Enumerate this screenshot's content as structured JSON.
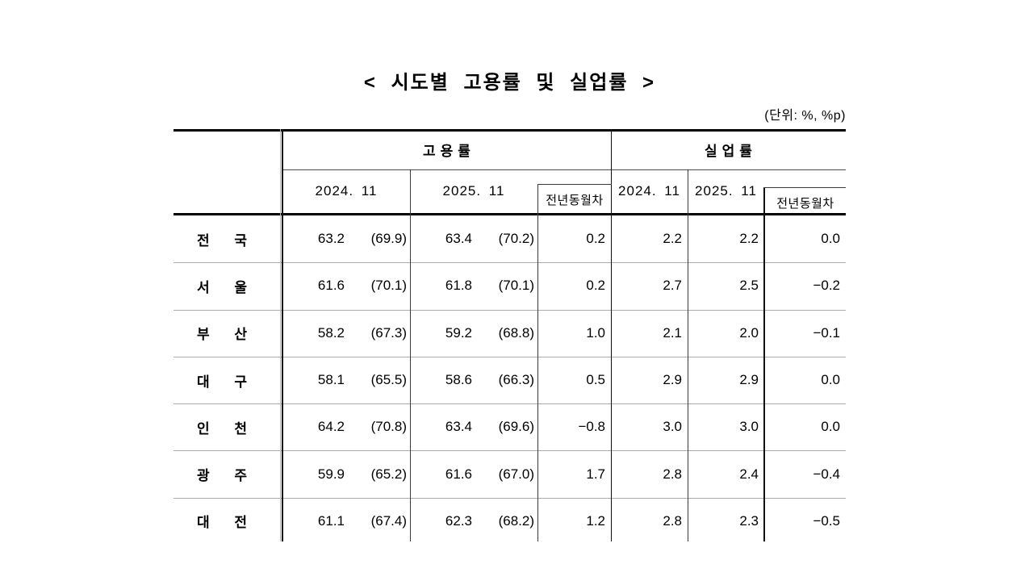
{
  "page": {
    "title": "< 시도별 고용률 및 실업률 >",
    "unit_note": "(단위: %, %p)"
  },
  "colors": {
    "text": "#111111",
    "border_dark": "#111111",
    "border_light": "#ababab"
  },
  "table": {
    "col_groups": [
      {
        "label": "고용률"
      },
      {
        "label": "실업률"
      }
    ],
    "sub_headers": {
      "emp_2024": "2024. 11",
      "emp_2025": "2025. 11",
      "emp_diff": "전년동월차",
      "unemp_2024": "2024. 11",
      "unemp_2025": "2025. 11",
      "unemp_diff": "전년동월차"
    },
    "rows": [
      {
        "region": "전 국",
        "e24v": "63.2",
        "e24p": "(69.9)",
        "e25v": "63.4",
        "e25p": "(70.2)",
        "ediff": "0.2",
        "u24": "2.2",
        "u25": "2.2",
        "udiff": "0.0"
      },
      {
        "region": "서 울",
        "e24v": "61.6",
        "e24p": "(70.1)",
        "e25v": "61.8",
        "e25p": "(70.1)",
        "ediff": "0.2",
        "u24": "2.7",
        "u25": "2.5",
        "udiff": "−0.2"
      },
      {
        "region": "부 산",
        "e24v": "58.2",
        "e24p": "(67.3)",
        "e25v": "59.2",
        "e25p": "(68.8)",
        "ediff": "1.0",
        "u24": "2.1",
        "u25": "2.0",
        "udiff": "−0.1"
      },
      {
        "region": "대 구",
        "e24v": "58.1",
        "e24p": "(65.5)",
        "e25v": "58.6",
        "e25p": "(66.3)",
        "ediff": "0.5",
        "u24": "2.9",
        "u25": "2.9",
        "udiff": "0.0"
      },
      {
        "region": "인 천",
        "e24v": "64.2",
        "e24p": "(70.8)",
        "e25v": "63.4",
        "e25p": "(69.6)",
        "ediff": "−0.8",
        "u24": "3.0",
        "u25": "3.0",
        "udiff": "0.0"
      },
      {
        "region": "광 주",
        "e24v": "59.9",
        "e24p": "(65.2)",
        "e25v": "61.6",
        "e25p": "(67.0)",
        "ediff": "1.7",
        "u24": "2.8",
        "u25": "2.4",
        "udiff": "−0.4"
      },
      {
        "region": "대 전",
        "e24v": "61.1",
        "e24p": "(67.4)",
        "e25v": "62.3",
        "e25p": "(68.2)",
        "ediff": "1.2",
        "u24": "2.8",
        "u25": "2.3",
        "udiff": "−0.5"
      }
    ]
  }
}
